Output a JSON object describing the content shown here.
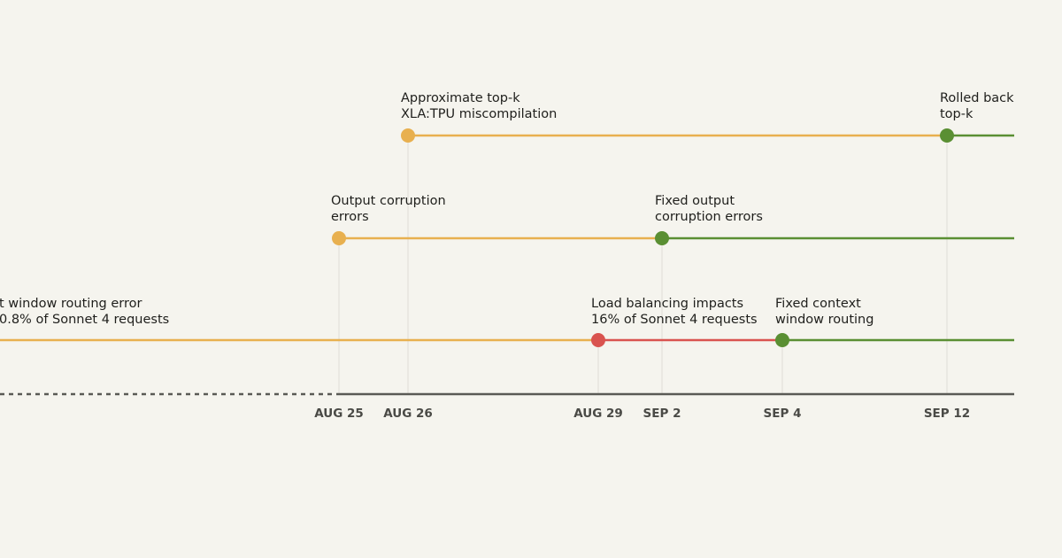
{
  "events": [
    {
      "lines": [
        "Approximate top-k",
        "XLA:TPU miscompilation"
      ]
    },
    {
      "lines": [
        "Rolled back",
        "top-k"
      ]
    },
    {
      "lines": [
        "Output corruption",
        "errors"
      ]
    },
    {
      "lines": [
        "Fixed output",
        "corruption errors"
      ]
    },
    {
      "lines": [
        "t window routing error",
        "0.8% of Sonnet 4 requests"
      ]
    },
    {
      "lines": [
        "Load balancing impacts",
        "16% of Sonnet 4 requests"
      ]
    },
    {
      "lines": [
        "Fixed context",
        "window routing"
      ]
    }
  ],
  "dates": [
    "AUG 25",
    "AUG 26",
    "AUG 29",
    "SEP 2",
    "SEP 4",
    "SEP 12"
  ]
}
